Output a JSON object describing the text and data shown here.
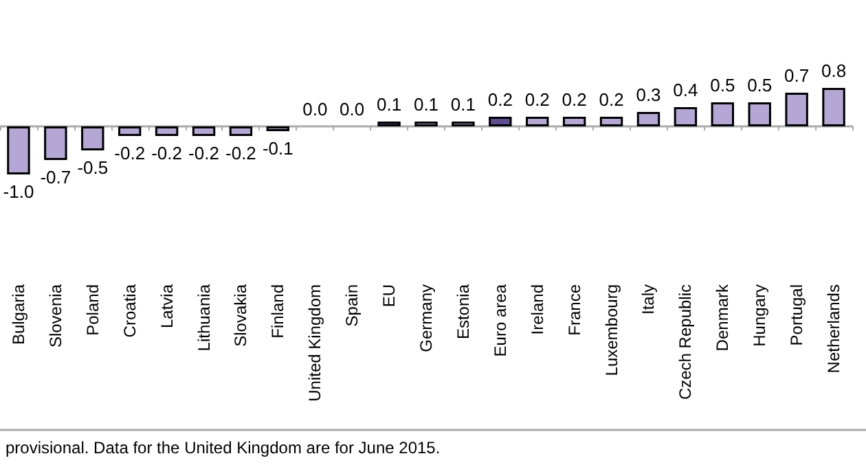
{
  "chart_data": {
    "type": "bar",
    "categories": [
      "Bulgaria",
      "Slovenia",
      "Poland",
      "Croatia",
      "Latvia",
      "Lithuania",
      "Slovakia",
      "Finland",
      "United Kingdom",
      "Spain",
      "EU",
      "Germany",
      "Estonia",
      "Euro area",
      "Ireland",
      "France",
      "Luxembourg",
      "Italy",
      "Czech Republic",
      "Denmark",
      "Hungary",
      "Portugal",
      "Netherlands"
    ],
    "values": [
      -1.0,
      -0.7,
      -0.5,
      -0.2,
      -0.2,
      -0.2,
      -0.2,
      -0.1,
      0.0,
      0.0,
      0.1,
      0.1,
      0.1,
      0.2,
      0.2,
      0.2,
      0.2,
      0.3,
      0.4,
      0.5,
      0.5,
      0.7,
      0.8
    ],
    "value_labels": [
      "-1.0",
      "-0.7",
      "-0.5",
      "-0.2",
      "-0.2",
      "-0.2",
      "-0.2",
      "-0.1",
      "0.0",
      "0.0",
      "0.1",
      "0.1",
      "0.1",
      "0.2",
      "0.2",
      "0.2",
      "0.2",
      "0.3",
      "0.4",
      "0.5",
      "0.5",
      "0.7",
      "0.8"
    ],
    "colors": [
      "#b4a7d6",
      "#b4a7d6",
      "#b4a7d6",
      "#b4a7d6",
      "#b4a7d6",
      "#b4a7d6",
      "#b4a7d6",
      "#b4a7d6",
      "#b4a7d6",
      "#b4a7d6",
      "#4b3b7a",
      "#b4a7d6",
      "#b4a7d6",
      "#5e4d91",
      "#b4a7d6",
      "#b4a7d6",
      "#b4a7d6",
      "#b4a7d6",
      "#b4a7d6",
      "#b4a7d6",
      "#b4a7d6",
      "#b4a7d6",
      "#b4a7d6"
    ],
    "grid": false,
    "annotations": [
      "provisional. Data for the United Kingdom are for June 2015."
    ]
  }
}
